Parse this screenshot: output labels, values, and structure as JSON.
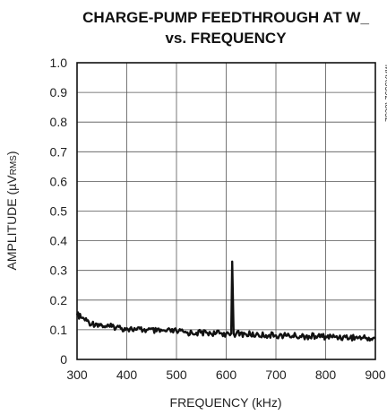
{
  "chart_data": {
    "type": "line",
    "title_line1": "CHARGE-PUMP FEEDTHROUGH AT W_",
    "title_line2": "vs. FREQUENCY",
    "xlabel": "FREQUENCY (kHz)",
    "ylabel": "AMPLITUDE (µVRMS)",
    "ylabel_main": "AMPLITUDE (µV",
    "ylabel_sub": "RMS",
    "ylabel_close": ")",
    "part_id": "MAX5392 toc32",
    "xlim": [
      300,
      900
    ],
    "ylim": [
      0,
      1.0
    ],
    "x_ticks": [
      "300",
      "400",
      "500",
      "600",
      "700",
      "800",
      "900"
    ],
    "y_ticks": [
      "0",
      "0.1",
      "0.2",
      "0.3",
      "0.4",
      "0.5",
      "0.6",
      "0.7",
      "0.8",
      "0.9",
      "1.0"
    ],
    "grid": true,
    "series": [
      {
        "x": [
          300,
          310,
          320,
          330,
          340,
          350,
          360,
          370,
          380,
          390,
          400,
          420,
          440,
          460,
          480,
          500,
          520,
          540,
          560,
          580,
          600,
          605,
          610,
          612,
          615,
          620,
          640,
          660,
          680,
          700,
          720,
          740,
          760,
          780,
          800,
          820,
          840,
          860,
          880,
          900
        ],
        "y": [
          0.15,
          0.14,
          0.13,
          0.12,
          0.12,
          0.115,
          0.11,
          0.11,
          0.11,
          0.105,
          0.105,
          0.1,
          0.1,
          0.095,
          0.095,
          0.095,
          0.09,
          0.09,
          0.09,
          0.088,
          0.087,
          0.087,
          0.087,
          0.33,
          0.087,
          0.086,
          0.085,
          0.083,
          0.082,
          0.081,
          0.08,
          0.079,
          0.078,
          0.078,
          0.077,
          0.076,
          0.075,
          0.074,
          0.072,
          0.07
        ]
      }
    ]
  }
}
